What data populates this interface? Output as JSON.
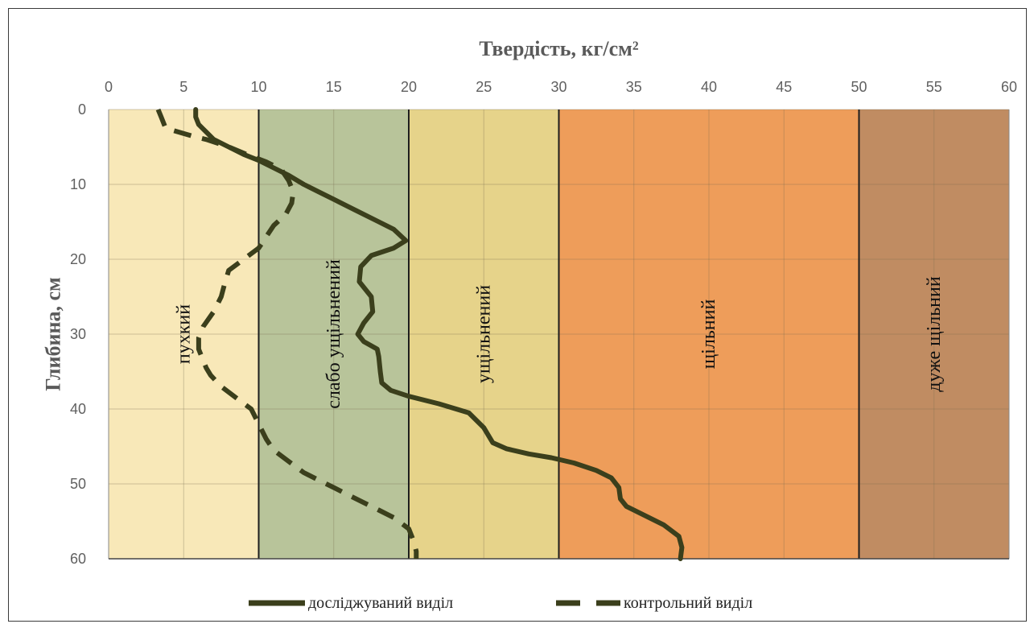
{
  "chart_data": {
    "type": "line",
    "title": "",
    "xlabel": "Твердість, кг/см²",
    "ylabel": "Глибина, см",
    "xlim": [
      0,
      60
    ],
    "ylim": [
      0,
      60
    ],
    "y_inverted": true,
    "x_axis_position": "top",
    "x_ticks": [
      0,
      5,
      10,
      15,
      20,
      25,
      30,
      35,
      40,
      45,
      50,
      55,
      60
    ],
    "y_ticks": [
      0,
      10,
      20,
      30,
      40,
      50,
      60
    ],
    "grid": true,
    "legend_position": "bottom",
    "zones": [
      {
        "label": "пухкий",
        "from": 0,
        "to": 10,
        "color": "#f8e8b8"
      },
      {
        "label": "слабо ущільнений",
        "from": 10,
        "to": 20,
        "color": "#b8c49a"
      },
      {
        "label": "ущільнений",
        "from": 20,
        "to": 30,
        "color": "#e6d38a"
      },
      {
        "label": "щільний",
        "from": 30,
        "to": 50,
        "color": "#ee9d5a"
      },
      {
        "label": "дуже щільний",
        "from": 50,
        "to": 60,
        "color": "#c08c62"
      }
    ],
    "series": [
      {
        "name": "досліджуваний виділ",
        "style": "solid",
        "color": "#3b3f1c",
        "points": [
          [
            5.8,
            0
          ],
          [
            5.8,
            1
          ],
          [
            6,
            2
          ],
          [
            6.5,
            3
          ],
          [
            7,
            4
          ],
          [
            8,
            5
          ],
          [
            9,
            6
          ],
          [
            10,
            6.8
          ],
          [
            11,
            7.8
          ],
          [
            12,
            8.8
          ],
          [
            13,
            10
          ],
          [
            14,
            11
          ],
          [
            15,
            12
          ],
          [
            16.5,
            13.5
          ],
          [
            18,
            15
          ],
          [
            19,
            16
          ],
          [
            19.8,
            17.5
          ],
          [
            19,
            18.5
          ],
          [
            17.5,
            19.5
          ],
          [
            16.8,
            21
          ],
          [
            16.7,
            23
          ],
          [
            17.5,
            25
          ],
          [
            17.6,
            27
          ],
          [
            17,
            28.5
          ],
          [
            16.6,
            30
          ],
          [
            17,
            31
          ],
          [
            17.9,
            32
          ],
          [
            18,
            33
          ],
          [
            18.1,
            35
          ],
          [
            18.2,
            36.5
          ],
          [
            18.8,
            37.5
          ],
          [
            20,
            38.3
          ],
          [
            22,
            39.3
          ],
          [
            24,
            40.5
          ],
          [
            25,
            42.5
          ],
          [
            25.6,
            44.5
          ],
          [
            26.5,
            45.3
          ],
          [
            28,
            46
          ],
          [
            29.5,
            46.5
          ],
          [
            31,
            47.2
          ],
          [
            32.5,
            48.2
          ],
          [
            33.5,
            49.2
          ],
          [
            34,
            50.5
          ],
          [
            34.1,
            52
          ],
          [
            34.5,
            53
          ],
          [
            35.5,
            54
          ],
          [
            37,
            55.5
          ],
          [
            38,
            57
          ],
          [
            38.2,
            58.5
          ],
          [
            38.1,
            60
          ]
        ]
      },
      {
        "name": "контрольний виділ",
        "style": "dashed",
        "color": "#3b3f1c",
        "points": [
          [
            3.3,
            0
          ],
          [
            3.5,
            1
          ],
          [
            3.7,
            2
          ],
          [
            3.8,
            2.5
          ],
          [
            5.5,
            3.5
          ],
          [
            6.5,
            4
          ],
          [
            8,
            5
          ],
          [
            9.2,
            6
          ],
          [
            10.5,
            7
          ],
          [
            11.5,
            8
          ],
          [
            12,
            9.5
          ],
          [
            12.3,
            11
          ],
          [
            12.2,
            12.5
          ],
          [
            11.8,
            14
          ],
          [
            11,
            15.5
          ],
          [
            10.5,
            17
          ],
          [
            10,
            18.5
          ],
          [
            9,
            20
          ],
          [
            8,
            21.5
          ],
          [
            7.7,
            23.5
          ],
          [
            7.5,
            25
          ],
          [
            7,
            27
          ],
          [
            6.3,
            29
          ],
          [
            6,
            30.5
          ],
          [
            6,
            32
          ],
          [
            6.2,
            33
          ],
          [
            6.5,
            34.5
          ],
          [
            6.8,
            35.5
          ],
          [
            7.5,
            37
          ],
          [
            8.5,
            38.5
          ],
          [
            9.5,
            40
          ],
          [
            10,
            42
          ],
          [
            10.5,
            44
          ],
          [
            11,
            45.5
          ],
          [
            12,
            47
          ],
          [
            13,
            48.5
          ],
          [
            14,
            49.5
          ],
          [
            15,
            50.5
          ],
          [
            16,
            51.5
          ],
          [
            17,
            52.5
          ],
          [
            18,
            53.5
          ],
          [
            19,
            54.5
          ],
          [
            20,
            56
          ],
          [
            20.3,
            57.5
          ],
          [
            20.5,
            59
          ],
          [
            20.5,
            60
          ]
        ]
      }
    ]
  }
}
